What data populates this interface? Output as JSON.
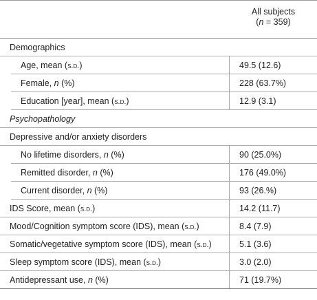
{
  "header": {
    "column": "All subjects",
    "subtitle": [
      "(",
      {
        "text": "n",
        "style": "italic"
      },
      " = 359)"
    ]
  },
  "items": [
    {
      "label": [
        "Demographics"
      ],
      "items": [
        {
          "label": [
            "Age, mean (",
            {
              "text": "s.d.",
              "style": "small-caps"
            },
            ")"
          ],
          "value": "49.5 (12.6)"
        },
        {
          "label": [
            "Female, ",
            {
              "text": "n",
              "style": "italic"
            },
            " (%)"
          ],
          "value": "228 (63.7%)"
        },
        {
          "label": [
            "Education [year], mean (",
            {
              "text": "s.d.",
              "style": "small-caps"
            },
            ")"
          ],
          "value": "12.9 (3.1)"
        }
      ]
    },
    {
      "label": [
        {
          "text": "Psychopathology",
          "style": "italic"
        }
      ]
    },
    {
      "label": [
        "Depressive and/or anxiety disorders"
      ],
      "items": [
        {
          "label": [
            "No lifetime disorders, ",
            {
              "text": "n",
              "style": "italic"
            },
            " (%)"
          ],
          "value": "90 (25.0%)"
        },
        {
          "label": [
            "Remitted disorder, ",
            {
              "text": "n",
              "style": "italic"
            },
            " (%)"
          ],
          "value": "176 (49.0%)"
        },
        {
          "label": [
            "Current disorder, ",
            {
              "text": "n",
              "style": "italic"
            },
            " (%)"
          ],
          "value": "93 (26.%)"
        }
      ]
    },
    {
      "label": [
        "IDS Score, mean (",
        {
          "text": "s.d.",
          "style": "small-caps"
        },
        ")"
      ],
      "value": "14.2 (11.7)"
    },
    {
      "label": [
        "Mood/Cognition symptom score (IDS), mean (",
        {
          "text": "s.d.",
          "style": "small-caps"
        },
        ")"
      ],
      "value": "8.4 (7.9)"
    },
    {
      "label": [
        "Somatic/vegetative symptom score (IDS), mean (",
        {
          "text": "s.d.",
          "style": "small-caps"
        },
        ")"
      ],
      "value": "5.1 (3.6)"
    },
    {
      "label": [
        "Sleep symptom score (IDS), mean (",
        {
          "text": "s.d.",
          "style": "small-caps"
        },
        ")"
      ],
      "value": "3.0 (2.0)"
    },
    {
      "label": [
        "Antidepressant use, ",
        {
          "text": "n",
          "style": "italic"
        },
        " (%)"
      ],
      "value": "71 (19.7%)"
    }
  ]
}
